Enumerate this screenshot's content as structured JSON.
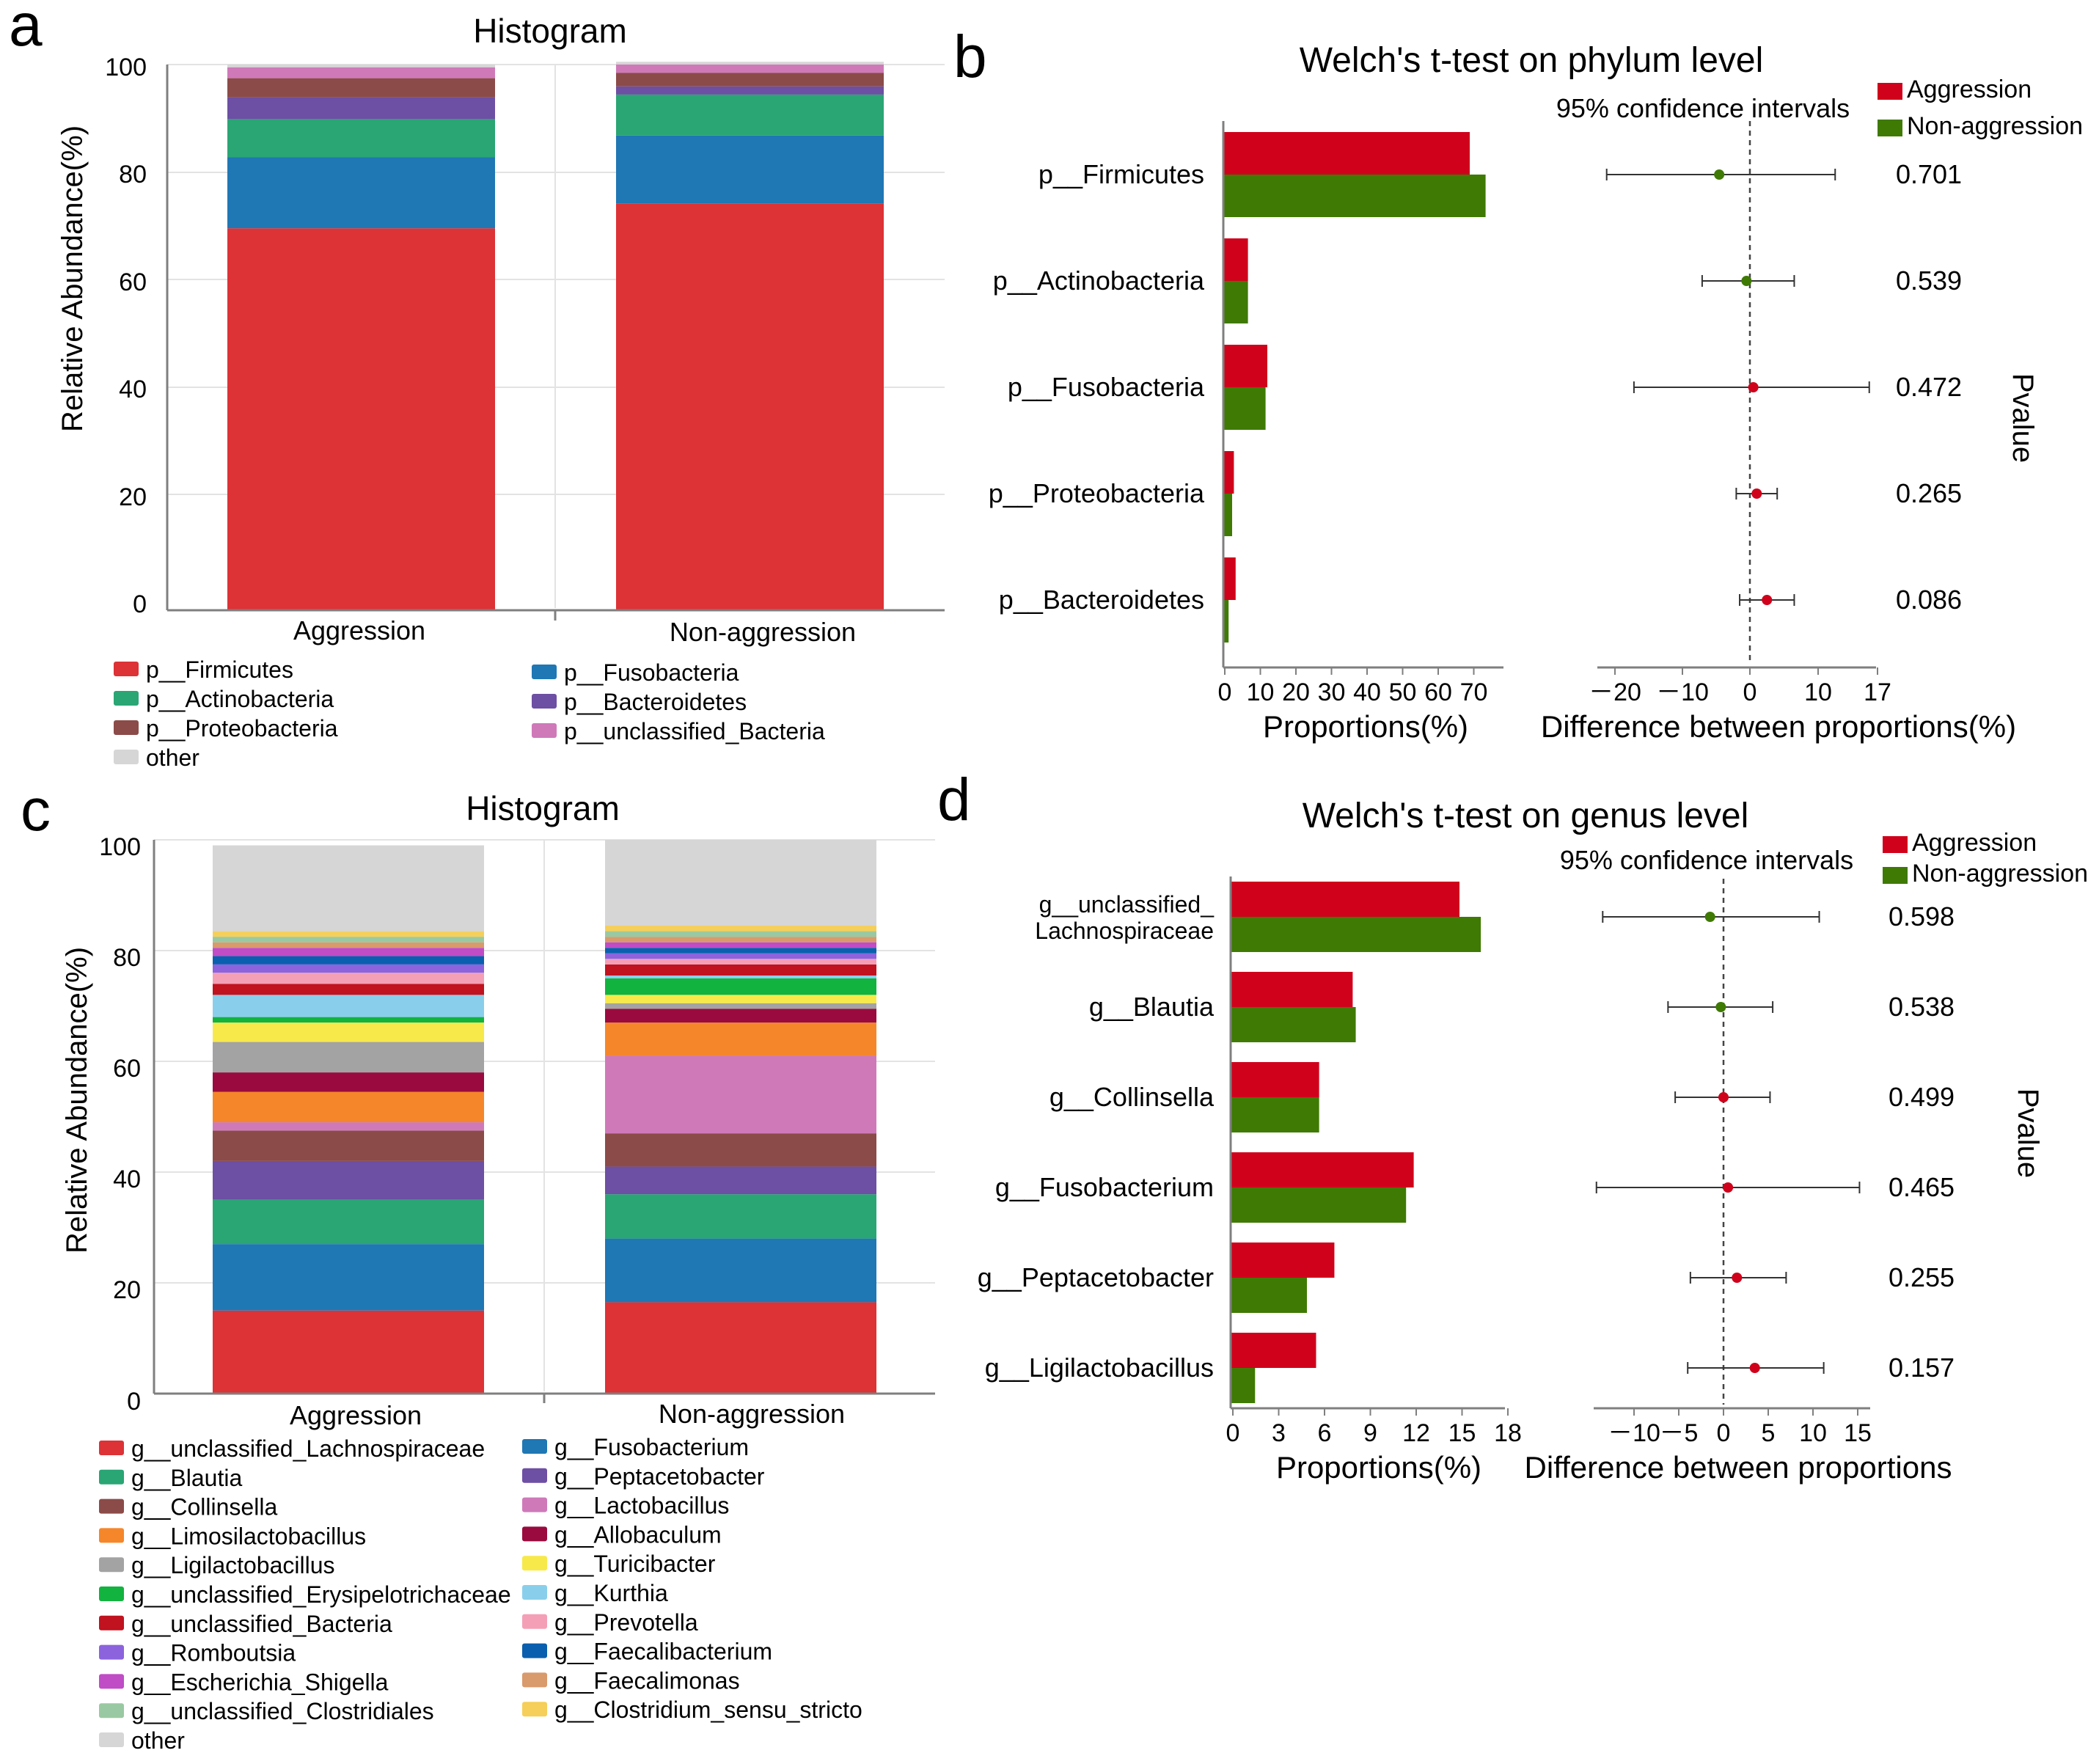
{
  "colors": {
    "aggression": "#d0021b",
    "non_aggression": "#3f7a04",
    "axis": "#7f7f7f",
    "grid": "#e3e3e3"
  },
  "chart_data": [
    {
      "id": "a",
      "panel_label": "a",
      "type": "bar",
      "stacked": true,
      "title": "Histogram",
      "ylabel": "Relative Abundance(%)",
      "ylim": [
        0,
        100
      ],
      "yticks": [
        "0",
        "20",
        "40",
        "60",
        "80",
        "100"
      ],
      "categories": [
        "Aggression",
        "Non-aggression"
      ],
      "series": [
        {
          "name": "p__Firmicutes",
          "color": "#dd3236",
          "values": [
            70,
            74.5
          ]
        },
        {
          "name": "p__Fusobacteria",
          "color": "#1f77b4",
          "values": [
            13,
            12.5
          ]
        },
        {
          "name": "p__Actinobacteria",
          "color": "#2aa574",
          "values": [
            7,
            7.5
          ]
        },
        {
          "name": "p__Bacteroidetes",
          "color": "#6d4fa3",
          "values": [
            4,
            1.5
          ]
        },
        {
          "name": "p__Proteobacteria",
          "color": "#8b4b48",
          "values": [
            3.5,
            2.5
          ]
        },
        {
          "name": "p__unclassified_Bacteria",
          "color": "#cf79b9",
          "values": [
            2,
            1.5
          ]
        },
        {
          "name": "other",
          "color": "#d6d6d6",
          "values": [
            0.5,
            0.5
          ]
        }
      ]
    },
    {
      "id": "b",
      "panel_label": "b",
      "type": "bar",
      "orientation": "horizontal",
      "title": "Welch's t-test on phylum level",
      "ci_label": "95% confidence intervals",
      "legend": [
        "Aggression",
        "Non-aggression"
      ],
      "categories": [
        "p__Firmicutes",
        "p__Actinobacteria",
        "p__Fusobacteria",
        "p__Proteobacteria",
        "p__Bacteroidetes"
      ],
      "series": [
        {
          "name": "Aggression",
          "values": [
            70,
            7,
            12.5,
            3,
            3.5
          ]
        },
        {
          "name": "Non-aggression",
          "values": [
            74.5,
            7,
            12,
            2.5,
            1.5
          ]
        }
      ],
      "xlabel": "Proportions(%)",
      "xticks": [
        "0",
        "10",
        "20",
        "30",
        "40",
        "50",
        "60",
        "70"
      ],
      "xlim": [
        0,
        80
      ],
      "difference": {
        "xlabel": "Difference between proportions(%)",
        "xticks": [
          "－20",
          "－10",
          "0",
          "10",
          "17"
        ],
        "xlim": [
          -22,
          17
        ],
        "estimates": [
          -4.5,
          -0.5,
          0.5,
          1,
          2.5
        ],
        "ci_low": [
          -21,
          -7,
          -17,
          -2,
          -1.5
        ],
        "ci_high": [
          12.5,
          6.5,
          17.5,
          4,
          6.5
        ]
      },
      "pvalues": [
        "0.701",
        "0.539",
        "0.472",
        "0.265",
        "0.086"
      ],
      "pvalue_label": "Pvalue"
    },
    {
      "id": "c",
      "panel_label": "c",
      "type": "bar",
      "stacked": true,
      "title": "Histogram",
      "ylabel": "Relative Abundance(%)",
      "ylim": [
        0,
        100
      ],
      "yticks": [
        "0",
        "20",
        "40",
        "60",
        "80",
        "100"
      ],
      "categories": [
        "Aggression",
        "Non-aggression"
      ],
      "series": [
        {
          "name": "g__unclassified_Lachnospiraceae",
          "color": "#dd3236",
          "values": [
            15,
            16.5
          ]
        },
        {
          "name": "g__Fusobacterium",
          "color": "#1f77b4",
          "values": [
            12,
            11.5
          ]
        },
        {
          "name": "g__Blautia",
          "color": "#2aa574",
          "values": [
            8,
            8
          ]
        },
        {
          "name": "g__Peptacetobacter",
          "color": "#6d4fa3",
          "values": [
            7,
            5
          ]
        },
        {
          "name": "g__Collinsella",
          "color": "#8b4b48",
          "values": [
            5.5,
            6
          ]
        },
        {
          "name": "g__Lactobacillus",
          "color": "#cf79b9",
          "values": [
            1.5,
            14
          ]
        },
        {
          "name": "g__Limosilactobacillus",
          "color": "#f5862a",
          "values": [
            5.5,
            6
          ]
        },
        {
          "name": "g__Allobaculum",
          "color": "#9a0a3e",
          "values": [
            3.5,
            2.5
          ]
        },
        {
          "name": "g__Ligilactobacillus",
          "color": "#a3a3a3",
          "values": [
            5.5,
            1
          ]
        },
        {
          "name": "g__Turicibacter",
          "color": "#f7e94a",
          "values": [
            3.5,
            1.5
          ]
        },
        {
          "name": "g__unclassified_Erysipelotrichaceae",
          "color": "#12b33f",
          "values": [
            1,
            3
          ]
        },
        {
          "name": "g__Kurthia",
          "color": "#89cfeb",
          "values": [
            4,
            0.5
          ]
        },
        {
          "name": "g__unclassified_Bacteria",
          "color": "#c0121f",
          "values": [
            2,
            2
          ]
        },
        {
          "name": "g__Prevotella",
          "color": "#f49fb6",
          "values": [
            2,
            1
          ]
        },
        {
          "name": "g__Romboutsia",
          "color": "#8c63dd",
          "values": [
            1.5,
            1
          ]
        },
        {
          "name": "g__Faecalibacterium",
          "color": "#0a5fae",
          "values": [
            1.5,
            1
          ]
        },
        {
          "name": "g__Escherichia_Shigella",
          "color": "#c04cc6",
          "values": [
            1.5,
            1
          ]
        },
        {
          "name": "g__Faecalimonas",
          "color": "#d99a6c",
          "values": [
            1,
            1
          ]
        },
        {
          "name": "g__unclassified_Clostridiales",
          "color": "#99c9a2",
          "values": [
            1,
            1
          ]
        },
        {
          "name": "g__Clostridium_sensu_stricto",
          "color": "#f5cf5a",
          "values": [
            1,
            1
          ]
        },
        {
          "name": "other",
          "color": "#d6d6d6",
          "values": [
            15.5,
            15.5
          ]
        }
      ]
    },
    {
      "id": "d",
      "panel_label": "d",
      "type": "bar",
      "orientation": "horizontal",
      "title": "Welch's t-test on genus level",
      "ci_label": "95% confidence intervals",
      "legend": [
        "Aggression",
        "Non-aggression"
      ],
      "categories": [
        "g__unclassified_Lachnospiraceae",
        "g__Blautia",
        "g__Collinsella",
        "g__Fusobacterium",
        "g__Peptacetobacter",
        "g__Ligilactobacillus"
      ],
      "category_display": [
        [
          "g__unclassified_",
          "Lachnospiraceae"
        ],
        [
          "g__Blautia"
        ],
        [
          "g__Collinsella"
        ],
        [
          "g__Fusobacterium"
        ],
        [
          "g__Peptacetobacter"
        ],
        [
          "g__Ligilactobacillus"
        ]
      ],
      "series": [
        {
          "name": "Aggression",
          "values": [
            15,
            8,
            5.8,
            12,
            6.8,
            5.6
          ]
        },
        {
          "name": "Non-aggression",
          "values": [
            16.4,
            8.2,
            5.8,
            11.5,
            5,
            1.6
          ]
        }
      ],
      "xlabel": "Proportions(%)",
      "xticks": [
        "0",
        "3",
        "6",
        "9",
        "12",
        "15",
        "18"
      ],
      "xlim": [
        0,
        18
      ],
      "difference": {
        "xlabel": "Difference between proportions",
        "xticks": [
          "－10",
          "－5",
          "0",
          "5",
          "10",
          "15"
        ],
        "xlim": [
          -12,
          16
        ],
        "estimates": [
          -1.5,
          -0.3,
          0,
          0.5,
          1.5,
          3.5
        ],
        "ci_low": [
          -13.5,
          -6.2,
          -5.4,
          -14.2,
          -3.7,
          -4
        ],
        "ci_high": [
          10.7,
          5.5,
          5.2,
          15.2,
          7,
          11.2
        ]
      },
      "pvalues": [
        "0.598",
        "0.538",
        "0.499",
        "0.465",
        "0.255",
        "0.157"
      ],
      "pvalue_label": "Pvalue"
    }
  ]
}
